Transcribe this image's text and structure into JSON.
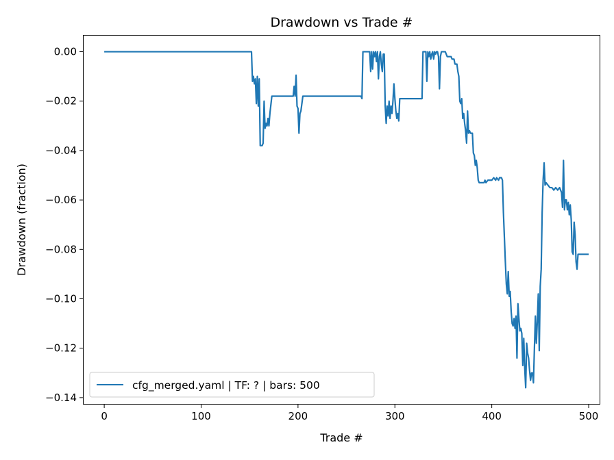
{
  "chart_data": {
    "type": "line",
    "title": "Drawdown vs Trade #",
    "xlabel": "Trade #",
    "ylabel": "Drawdown (fraction)",
    "xlim": [
      -22,
      512
    ],
    "ylim": [
      -0.1428,
      0.0068
    ],
    "xticks": [
      0,
      100,
      200,
      300,
      400,
      500
    ],
    "yticks": [
      0.0,
      -0.02,
      -0.04,
      -0.06,
      -0.08,
      -0.1,
      -0.12,
      -0.14
    ],
    "ytick_labels": [
      "0.00",
      "−0.02",
      "−0.04",
      "−0.06",
      "−0.08",
      "−0.10",
      "−0.12",
      "−0.14"
    ],
    "grid": false,
    "legend_position": "lower-left",
    "colors": {
      "line": "#1f77b4",
      "axes": "#000000",
      "background": "#ffffff"
    },
    "series": [
      {
        "name": "cfg_merged.yaml | TF: ? | bars: 500",
        "points": [
          [
            0,
            0
          ],
          [
            152,
            0
          ],
          [
            153,
            -0.012
          ],
          [
            154,
            -0.01
          ],
          [
            155,
            -0.013
          ],
          [
            156,
            -0.011
          ],
          [
            157,
            -0.021
          ],
          [
            158,
            -0.01
          ],
          [
            159,
            -0.022
          ],
          [
            160,
            -0.011
          ],
          [
            161,
            -0.038
          ],
          [
            163,
            -0.038
          ],
          [
            164,
            -0.037
          ],
          [
            165,
            -0.02
          ],
          [
            166,
            -0.031
          ],
          [
            167,
            -0.029
          ],
          [
            168,
            -0.03
          ],
          [
            169,
            -0.027
          ],
          [
            170,
            -0.03
          ],
          [
            171,
            -0.025
          ],
          [
            173,
            -0.018
          ],
          [
            195,
            -0.018
          ],
          [
            196,
            -0.014
          ],
          [
            197,
            -0.018
          ],
          [
            198,
            -0.0095
          ],
          [
            199,
            -0.022
          ],
          [
            200,
            -0.023
          ],
          [
            201,
            -0.033
          ],
          [
            202,
            -0.025
          ],
          [
            203,
            -0.024
          ],
          [
            205,
            -0.018
          ],
          [
            265,
            -0.018
          ],
          [
            266,
            -0.019
          ],
          [
            267,
            0
          ],
          [
            274,
            0
          ],
          [
            275,
            -0.008
          ],
          [
            276,
            0
          ],
          [
            277,
            -0.007
          ],
          [
            278,
            0
          ],
          [
            279,
            -0.002
          ],
          [
            280,
            0
          ],
          [
            281,
            -0.004
          ],
          [
            282,
            0
          ],
          [
            283,
            -0.011
          ],
          [
            284,
            -0.002
          ],
          [
            285,
            0
          ],
          [
            286,
            -0.005
          ],
          [
            287,
            -0.008
          ],
          [
            288,
            -0.001
          ],
          [
            289,
            -0.001
          ],
          [
            290,
            -0.022
          ],
          [
            291,
            -0.029
          ],
          [
            292,
            -0.022
          ],
          [
            293,
            -0.026
          ],
          [
            294,
            -0.02
          ],
          [
            295,
            -0.027
          ],
          [
            296,
            -0.022
          ],
          [
            297,
            -0.025
          ],
          [
            298,
            -0.02
          ],
          [
            299,
            -0.013
          ],
          [
            300,
            -0.019
          ],
          [
            301,
            -0.024
          ],
          [
            302,
            -0.027
          ],
          [
            303,
            -0.025
          ],
          [
            304,
            -0.028
          ],
          [
            305,
            -0.019
          ],
          [
            314,
            -0.019
          ],
          [
            315,
            -0.019
          ],
          [
            328,
            -0.019
          ],
          [
            329,
            0
          ],
          [
            332,
            0
          ],
          [
            333,
            -0.012
          ],
          [
            334,
            0
          ],
          [
            335,
            -0.002
          ],
          [
            336,
            0
          ],
          [
            337,
            -0.003
          ],
          [
            338,
            -0.001
          ],
          [
            339,
            0
          ],
          [
            340,
            -0.003
          ],
          [
            341,
            0
          ],
          [
            342,
            -0.001
          ],
          [
            343,
            0
          ],
          [
            344,
            0
          ],
          [
            345,
            -0.002
          ],
          [
            346,
            -0.015
          ],
          [
            347,
            -0.002
          ],
          [
            348,
            0
          ],
          [
            352,
            0
          ],
          [
            353,
            -0.001
          ],
          [
            354,
            -0.002
          ],
          [
            358,
            -0.002
          ],
          [
            359,
            -0.003
          ],
          [
            361,
            -0.003
          ],
          [
            362,
            -0.005
          ],
          [
            364,
            -0.005
          ],
          [
            365,
            -0.008
          ],
          [
            366,
            -0.01
          ],
          [
            367,
            -0.02
          ],
          [
            368,
            -0.021
          ],
          [
            369,
            -0.019
          ],
          [
            370,
            -0.027
          ],
          [
            371,
            -0.025
          ],
          [
            372,
            -0.029
          ],
          [
            373,
            -0.032
          ],
          [
            374,
            -0.037
          ],
          [
            375,
            -0.024
          ],
          [
            376,
            -0.033
          ],
          [
            377,
            -0.032
          ],
          [
            378,
            -0.033
          ],
          [
            380,
            -0.033
          ],
          [
            381,
            -0.041
          ],
          [
            382,
            -0.042
          ],
          [
            383,
            -0.046
          ],
          [
            384,
            -0.044
          ],
          [
            385,
            -0.047
          ],
          [
            386,
            -0.052
          ],
          [
            387,
            -0.053
          ],
          [
            390,
            -0.053
          ],
          [
            392,
            -0.053
          ],
          [
            393,
            -0.052
          ],
          [
            394,
            -0.053
          ],
          [
            396,
            -0.052
          ],
          [
            398,
            -0.052
          ],
          [
            400,
            -0.052
          ],
          [
            402,
            -0.051
          ],
          [
            404,
            -0.052
          ],
          [
            405,
            -0.051
          ],
          [
            407,
            -0.052
          ],
          [
            408,
            -0.051
          ],
          [
            410,
            -0.051
          ],
          [
            411,
            -0.052
          ],
          [
            412,
            -0.065
          ],
          [
            413,
            -0.075
          ],
          [
            414,
            -0.085
          ],
          [
            415,
            -0.094
          ],
          [
            416,
            -0.098
          ],
          [
            417,
            -0.089
          ],
          [
            418,
            -0.099
          ],
          [
            419,
            -0.097
          ],
          [
            420,
            -0.105
          ],
          [
            421,
            -0.11
          ],
          [
            422,
            -0.111
          ],
          [
            423,
            -0.108
          ],
          [
            424,
            -0.112
          ],
          [
            425,
            -0.107
          ],
          [
            426,
            -0.124
          ],
          [
            427,
            -0.102
          ],
          [
            428,
            -0.108
          ],
          [
            429,
            -0.113
          ],
          [
            430,
            -0.112
          ],
          [
            431,
            -0.114
          ],
          [
            432,
            -0.127
          ],
          [
            433,
            -0.116
          ],
          [
            434,
            -0.128
          ],
          [
            435,
            -0.136
          ],
          [
            436,
            -0.118
          ],
          [
            437,
            -0.122
          ],
          [
            438,
            -0.124
          ],
          [
            439,
            -0.129
          ],
          [
            440,
            -0.133
          ],
          [
            441,
            -0.13
          ],
          [
            442,
            -0.13
          ],
          [
            443,
            -0.134
          ],
          [
            444,
            -0.12
          ],
          [
            445,
            -0.107
          ],
          [
            446,
            -0.118
          ],
          [
            447,
            -0.109
          ],
          [
            448,
            -0.098
          ],
          [
            449,
            -0.121
          ],
          [
            450,
            -0.095
          ],
          [
            451,
            -0.088
          ],
          [
            452,
            -0.065
          ],
          [
            453,
            -0.052
          ],
          [
            454,
            -0.045
          ],
          [
            455,
            -0.054
          ],
          [
            456,
            -0.053
          ],
          [
            458,
            -0.054
          ],
          [
            460,
            -0.055
          ],
          [
            462,
            -0.055
          ],
          [
            464,
            -0.056
          ],
          [
            466,
            -0.055
          ],
          [
            468,
            -0.056
          ],
          [
            470,
            -0.055
          ],
          [
            472,
            -0.057
          ],
          [
            473,
            -0.063
          ],
          [
            474,
            -0.044
          ],
          [
            475,
            -0.064
          ],
          [
            476,
            -0.06
          ],
          [
            477,
            -0.06
          ],
          [
            478,
            -0.064
          ],
          [
            479,
            -0.061
          ],
          [
            480,
            -0.066
          ],
          [
            481,
            -0.062
          ],
          [
            482,
            -0.068
          ],
          [
            483,
            -0.081
          ],
          [
            484,
            -0.082
          ],
          [
            485,
            -0.069
          ],
          [
            486,
            -0.074
          ],
          [
            487,
            -0.085
          ],
          [
            488,
            -0.088
          ],
          [
            489,
            -0.082
          ],
          [
            500,
            -0.082
          ]
        ]
      }
    ]
  }
}
